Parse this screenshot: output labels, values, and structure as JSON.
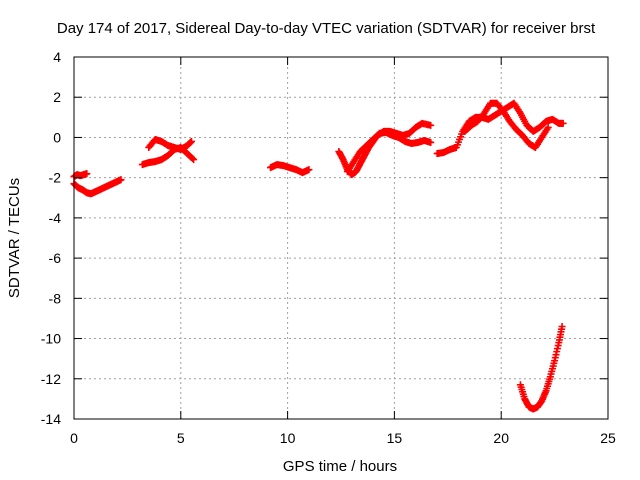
{
  "chart_data": {
    "type": "scatter",
    "title": "Day 174 of 2017, Sidereal Day-to-day VTEC variation (SDTVAR) for receiver brst",
    "xlabel": "GPS time / hours",
    "ylabel": "SDTVAR / TECUs",
    "xlim": [
      0,
      25
    ],
    "ylim": [
      -14,
      4
    ],
    "xticks": [
      0,
      5,
      10,
      15,
      20,
      25
    ],
    "yticks": [
      -14,
      -12,
      -10,
      -8,
      -6,
      -4,
      -2,
      0,
      2,
      4
    ],
    "grid": true,
    "legend": "none",
    "marker": "plus",
    "colors": {
      "series": "#ff0000",
      "grid": "#a0a0a0",
      "axis": "#000000"
    },
    "series": [
      {
        "name": "seg1",
        "x": [
          0.0,
          0.2,
          0.4,
          0.6,
          0.8,
          1.0,
          1.2,
          1.4,
          1.6,
          1.8,
          2.0,
          2.2
        ],
        "y": [
          -2.3,
          -2.5,
          -2.6,
          -2.75,
          -2.8,
          -2.7,
          -2.6,
          -2.5,
          -2.4,
          -2.3,
          -2.2,
          -2.1
        ]
      },
      {
        "name": "seg2",
        "x": [
          0.0,
          0.15,
          0.3,
          0.45,
          0.6
        ],
        "y": [
          -1.95,
          -1.85,
          -1.9,
          -1.85,
          -1.8
        ]
      },
      {
        "name": "seg3",
        "x": [
          3.2,
          3.5,
          3.8,
          4.1,
          4.4,
          4.7,
          5.0,
          5.3,
          5.6
        ],
        "y": [
          -1.35,
          -1.25,
          -1.2,
          -1.1,
          -0.9,
          -0.6,
          -0.5,
          -0.8,
          -1.1
        ]
      },
      {
        "name": "seg4",
        "x": [
          3.5,
          3.8,
          4.1,
          4.4,
          4.7,
          5.0,
          5.3,
          5.5
        ],
        "y": [
          -0.5,
          -0.1,
          -0.2,
          -0.4,
          -0.5,
          -0.6,
          -0.4,
          -0.2
        ]
      },
      {
        "name": "seg5",
        "x": [
          9.2,
          9.5,
          9.8,
          10.1,
          10.4,
          10.7,
          11.0
        ],
        "y": [
          -1.5,
          -1.35,
          -1.4,
          -1.5,
          -1.6,
          -1.75,
          -1.6
        ]
      },
      {
        "name": "seg6",
        "x": [
          12.4,
          12.6,
          12.8,
          13.0,
          13.2,
          13.4,
          13.6,
          13.8,
          14.0,
          14.2,
          14.5,
          14.8,
          15.1,
          15.4,
          15.7,
          16.0,
          16.3,
          16.7
        ],
        "y": [
          -0.7,
          -1.1,
          -1.6,
          -1.85,
          -1.7,
          -1.3,
          -0.9,
          -0.5,
          -0.2,
          0.1,
          0.3,
          0.3,
          0.2,
          0.1,
          0.2,
          0.5,
          0.7,
          0.6
        ]
      },
      {
        "name": "seg7",
        "x": [
          12.8,
          13.1,
          13.4,
          13.7,
          14.0,
          14.3,
          14.6,
          14.9,
          15.2,
          15.5,
          15.8,
          16.1,
          16.4,
          16.7
        ],
        "y": [
          -1.7,
          -1.2,
          -0.7,
          -0.4,
          -0.1,
          0.2,
          0.25,
          0.1,
          0.0,
          -0.2,
          -0.3,
          -0.25,
          -0.15,
          -0.25
        ]
      },
      {
        "name": "seg8",
        "x": [
          17.0,
          17.3,
          17.6,
          17.9,
          18.2,
          18.5,
          18.8,
          19.1,
          19.4,
          19.7,
          20.0,
          20.3,
          20.6,
          20.9,
          21.2,
          21.5,
          21.8,
          22.1,
          22.4,
          22.7,
          22.9
        ],
        "y": [
          -0.8,
          -0.75,
          -0.6,
          -0.5,
          0.3,
          0.8,
          1.0,
          1.0,
          0.9,
          1.1,
          1.3,
          1.5,
          1.7,
          1.2,
          0.6,
          0.3,
          0.5,
          0.8,
          0.9,
          0.7,
          0.7
        ]
      },
      {
        "name": "seg9",
        "x": [
          18.3,
          18.6,
          18.9,
          19.2,
          19.5,
          19.8,
          20.1,
          20.4,
          20.7,
          21.0,
          21.3,
          21.6,
          21.9,
          22.2
        ],
        "y": [
          0.3,
          0.6,
          0.8,
          1.2,
          1.7,
          1.7,
          1.3,
          0.8,
          0.4,
          0.1,
          -0.3,
          -0.5,
          0.0,
          0.5
        ]
      },
      {
        "name": "seg10",
        "x": [
          20.9,
          21.1,
          21.3,
          21.5,
          21.7,
          21.9,
          22.1,
          22.3,
          22.5,
          22.7,
          22.85
        ],
        "y": [
          -12.3,
          -13.0,
          -13.4,
          -13.5,
          -13.4,
          -13.1,
          -12.6,
          -11.9,
          -11.1,
          -10.2,
          -9.4
        ]
      }
    ]
  }
}
